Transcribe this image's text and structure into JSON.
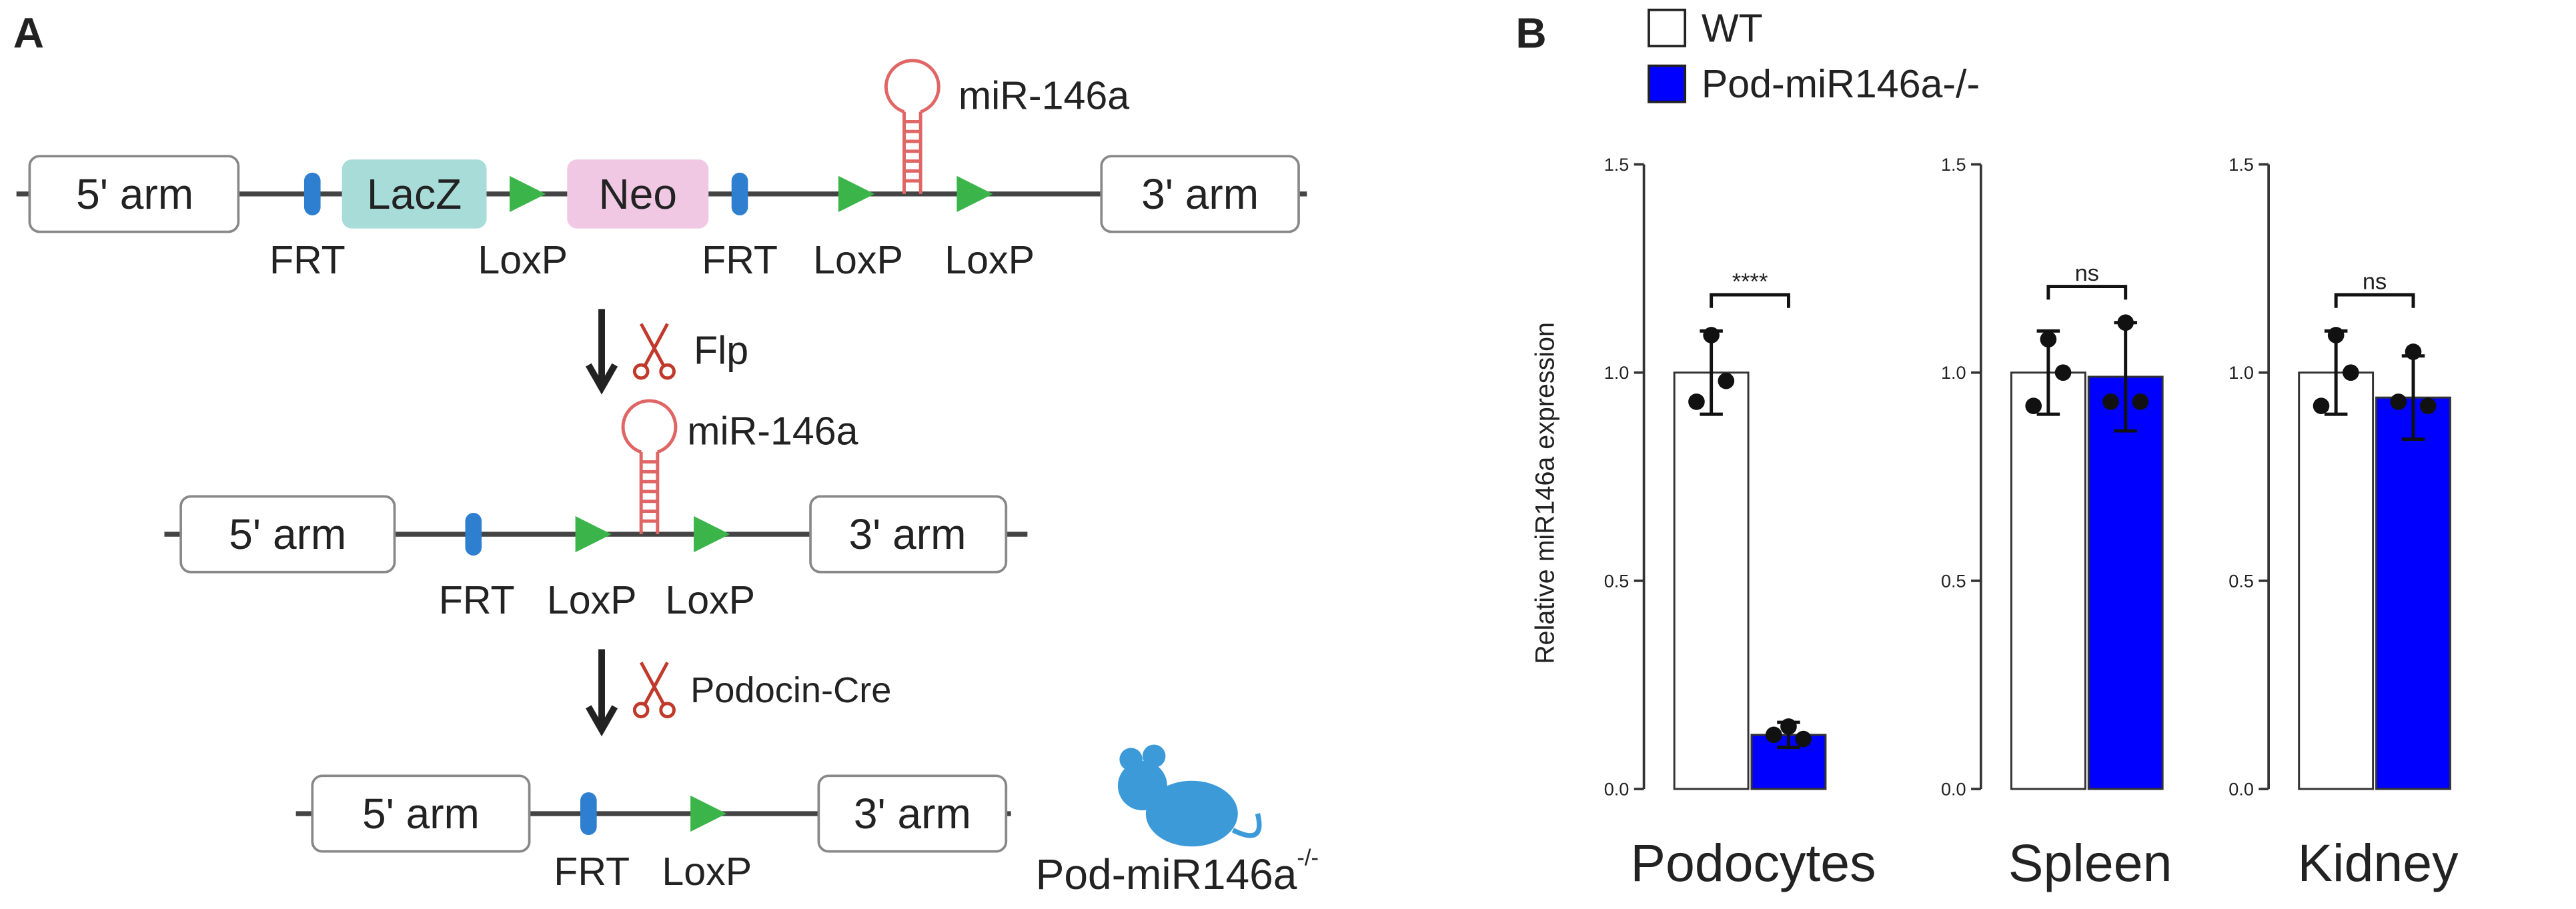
{
  "panel_labels": [
    "A",
    "B"
  ],
  "diagram": {
    "row1": {
      "arm5": "5' arm",
      "lacz": "LacZ",
      "neo": "Neo",
      "arm3": "3' arm",
      "hairpin": "miR-146a",
      "sites": [
        "FRT",
        "LoxP",
        "FRT",
        "LoxP",
        "LoxP"
      ]
    },
    "step1": "Flp",
    "row2": {
      "arm5": "5' arm",
      "arm3": "3' arm",
      "hairpin": "miR-146a",
      "sites": [
        "FRT",
        "LoxP",
        "LoxP"
      ]
    },
    "step2": "Podocin-Cre",
    "row3": {
      "arm5": "5' arm",
      "arm3": "3' arm",
      "sites": [
        "FRT",
        "LoxP"
      ]
    },
    "mouse": {
      "label": "Pod-miR146a",
      "superscript": "-/-"
    }
  },
  "chart_data": [
    {
      "type": "bar",
      "title": "Podocytes",
      "ylabel": "Relative miR146a expression",
      "categories": [
        null
      ],
      "series": [
        {
          "name": "WT",
          "color": "#ffffff",
          "values": [
            1.0
          ],
          "errors": [
            0.1
          ],
          "points": [
            [
              1.09,
              0.93,
              0.98
            ]
          ]
        },
        {
          "name": "Pod-miR146a-/-",
          "color": "#0000ff",
          "values": [
            0.13
          ],
          "errors": [
            0.03
          ],
          "points": [
            [
              0.15,
              0.13,
              0.12
            ]
          ]
        }
      ],
      "annotation": "****",
      "ylim": [
        0,
        1.5
      ],
      "yticks": [
        {
          "value": 0,
          "label": "0.0"
        },
        {
          "value": 0.5,
          "label": "0.5"
        },
        {
          "value": 1,
          "label": "1.0"
        },
        {
          "value": 1.5,
          "label": "1.5"
        }
      ]
    },
    {
      "type": "bar",
      "title": "Spleen",
      "categories": [
        null
      ],
      "series": [
        {
          "color": "#ffffff",
          "values": [
            1.0
          ],
          "errors": [
            0.1
          ],
          "points": [
            [
              1.08,
              0.92,
              1.0
            ]
          ]
        },
        {
          "color": "#0000ff",
          "values": [
            0.99
          ],
          "errors": [
            0.13
          ],
          "points": [
            [
              1.12,
              0.93,
              0.93
            ]
          ]
        }
      ],
      "annotation": "ns",
      "ylim": [
        0,
        1.5
      ],
      "yticks": [
        {
          "value": 0,
          "label": "0.0"
        },
        {
          "value": 0.5,
          "label": "0.5"
        },
        {
          "value": 1,
          "label": "1.0"
        },
        {
          "value": 1.5,
          "label": "1.5"
        }
      ]
    },
    {
      "type": "bar",
      "title": "Kidney",
      "categories": [
        null
      ],
      "series": [
        {
          "color": "#ffffff",
          "values": [
            1.0
          ],
          "errors": [
            0.1
          ],
          "points": [
            [
              1.09,
              0.92,
              1.0
            ]
          ]
        },
        {
          "color": "#0000ff",
          "values": [
            0.94
          ],
          "errors": [
            0.1
          ],
          "points": [
            [
              1.05,
              0.93,
              0.92
            ]
          ]
        }
      ],
      "annotation": "ns",
      "ylim": [
        0,
        1.5
      ],
      "yticks": [
        {
          "value": 0,
          "label": "0.0"
        },
        {
          "value": 0.5,
          "label": "0.5"
        },
        {
          "value": 1,
          "label": "1.0"
        },
        {
          "value": 1.5,
          "label": "1.5"
        }
      ]
    }
  ]
}
